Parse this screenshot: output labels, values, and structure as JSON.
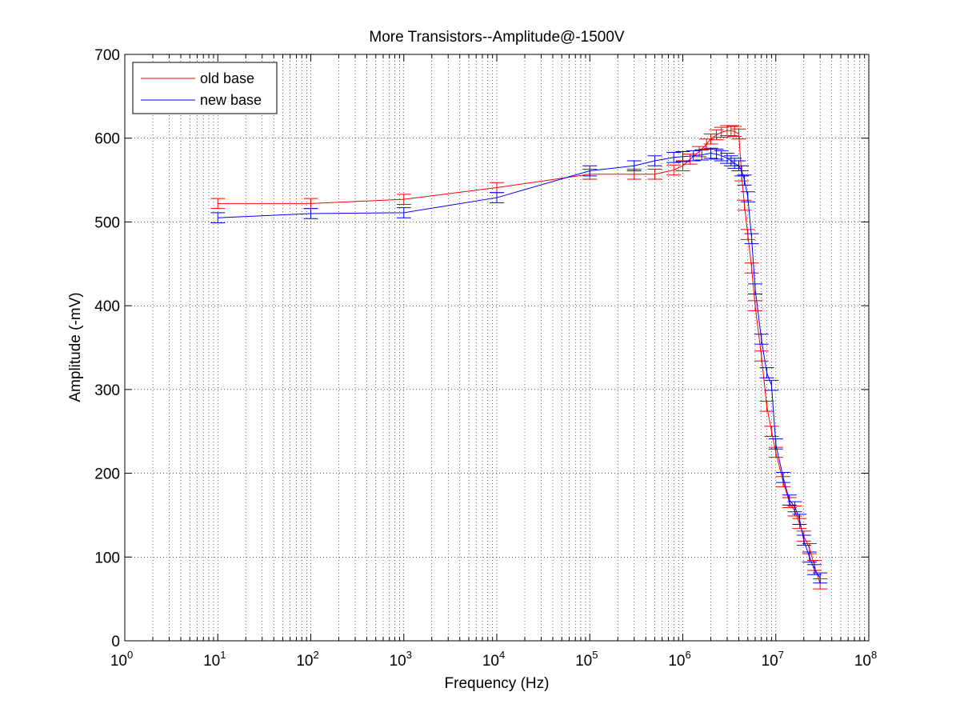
{
  "chart_data": {
    "type": "line",
    "title": "More Transistors--Amplitude@-1500V",
    "xlabel": "Frequency (Hz)",
    "ylabel": "Amplitude (-mV)",
    "xscale": "log",
    "xlim": [
      1,
      100000000
    ],
    "ylim": [
      0,
      700
    ],
    "grid": true,
    "legend_position": "top-left",
    "x_ticks": [
      {
        "value": 1,
        "base": "10",
        "exp": "0"
      },
      {
        "value": 10,
        "base": "10",
        "exp": "1"
      },
      {
        "value": 100,
        "base": "10",
        "exp": "2"
      },
      {
        "value": 1000,
        "base": "10",
        "exp": "3"
      },
      {
        "value": 10000,
        "base": "10",
        "exp": "4"
      },
      {
        "value": 100000,
        "base": "10",
        "exp": "5"
      },
      {
        "value": 1000000,
        "base": "10",
        "exp": "6"
      },
      {
        "value": 10000000,
        "base": "10",
        "exp": "7"
      },
      {
        "value": 100000000,
        "base": "10",
        "exp": "8"
      }
    ],
    "y_ticks": [
      {
        "value": 0,
        "label": "0"
      },
      {
        "value": 100,
        "label": "100"
      },
      {
        "value": 200,
        "label": "200"
      },
      {
        "value": 300,
        "label": "300"
      },
      {
        "value": 400,
        "label": "400"
      },
      {
        "value": 500,
        "label": "500"
      },
      {
        "value": 600,
        "label": "600"
      },
      {
        "value": 700,
        "label": "700"
      }
    ],
    "series": [
      {
        "name": "old base",
        "color": "#ff0000",
        "error": 6,
        "x": [
          10,
          100,
          1000,
          10000,
          100000,
          300000,
          500000,
          800000,
          1000000,
          1200000,
          1500000,
          1800000,
          2000000,
          2300000,
          2600000,
          3000000,
          3300000,
          3600000,
          4000000,
          4300000,
          4600000,
          5000000,
          5500000,
          6000000,
          7000000,
          8000000,
          9000000,
          10000000,
          12000000,
          14000000,
          16000000,
          18000000,
          20000000,
          23000000,
          26000000,
          30000000
        ],
        "y": [
          522,
          522,
          527,
          541,
          557,
          557,
          557,
          562,
          567,
          575,
          584,
          593,
          599,
          604,
          607,
          609,
          609,
          608,
          605,
          555,
          520,
          485,
          445,
          400,
          340,
          280,
          250,
          225,
          190,
          165,
          155,
          140,
          125,
          110,
          90,
          68
        ]
      },
      {
        "name": "new base",
        "color": "#0000ff",
        "error": 6,
        "x": [
          10,
          100,
          1000,
          10000,
          100000,
          300000,
          500000,
          800000,
          1000000,
          1300000,
          1600000,
          2000000,
          2300000,
          2600000,
          3000000,
          3300000,
          3600000,
          4000000,
          4300000,
          4600000,
          5000000,
          5500000,
          6000000,
          7000000,
          8000000,
          9000000,
          10000000,
          12000000,
          14000000,
          16000000,
          18000000,
          20000000,
          23000000,
          26000000,
          30000000
        ],
        "y": [
          505,
          510,
          511,
          529,
          561,
          567,
          573,
          577,
          578,
          579,
          580,
          582,
          581,
          579,
          576,
          573,
          570,
          567,
          561,
          550,
          530,
          480,
          420,
          360,
          320,
          305,
          235,
          195,
          168,
          160,
          145,
          120,
          100,
          85,
          75
        ]
      }
    ]
  }
}
